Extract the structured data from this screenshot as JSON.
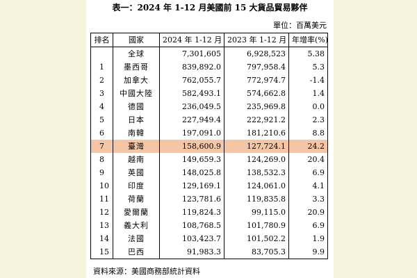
{
  "title": "表一：2024 年 1-12 月美國前 15 大貨品貿易夥伴",
  "unit": "單位：百萬美元",
  "headers": {
    "rank": "排名",
    "country": "國家",
    "y2024": "2024 年 1-12 月",
    "y2023": "2023 年 1-12 月",
    "growth": "年增率(%)"
  },
  "rows": [
    {
      "rank": "",
      "country": "全球",
      "y2024": "7,301,605",
      "y2023": "6,928,523",
      "growth": "5.38"
    },
    {
      "rank": "1",
      "country": "墨西哥",
      "y2024": "839,892.0",
      "y2023": "797,958.4",
      "growth": "5.3"
    },
    {
      "rank": "2",
      "country": "加拿大",
      "y2024": "762,055.7",
      "y2023": "772,974.7",
      "growth": "-1.4"
    },
    {
      "rank": "3",
      "country": "中國大陸",
      "y2024": "582,493.1",
      "y2023": "574,662.8",
      "growth": "1.4"
    },
    {
      "rank": "4",
      "country": "德國",
      "y2024": "236,049.5",
      "y2023": "235,969.8",
      "growth": "0.0"
    },
    {
      "rank": "5",
      "country": "日本",
      "y2024": "227,949.4",
      "y2023": "222,921.2",
      "growth": "2.3"
    },
    {
      "rank": "6",
      "country": "南韓",
      "y2024": "197,091.0",
      "y2023": "181,210.6",
      "growth": "8.8"
    },
    {
      "rank": "7",
      "country": "臺灣",
      "y2024": "158,600.9",
      "y2023": "127,724.1",
      "growth": "24.2"
    },
    {
      "rank": "8",
      "country": "越南",
      "y2024": "149,659.3",
      "y2023": "124,269.0",
      "growth": "20.4"
    },
    {
      "rank": "9",
      "country": "英國",
      "y2024": "148,025.8",
      "y2023": "138,532.3",
      "growth": "6.9"
    },
    {
      "rank": "10",
      "country": "印度",
      "y2024": "129,169.1",
      "y2023": "124,061.0",
      "growth": "4.1"
    },
    {
      "rank": "11",
      "country": "荷蘭",
      "y2024": "123,781.6",
      "y2023": "119,835.8",
      "growth": "3.3"
    },
    {
      "rank": "12",
      "country": "愛爾蘭",
      "y2024": "119,824.3",
      "y2023": "99,115.0",
      "growth": "20.9"
    },
    {
      "rank": "13",
      "country": "義大利",
      "y2024": "108,768.5",
      "y2023": "101,780.9",
      "growth": "6.9"
    },
    {
      "rank": "14",
      "country": "法國",
      "y2024": "103,423.7",
      "y2023": "101,502.2",
      "growth": "1.9"
    },
    {
      "rank": "15",
      "country": "巴西",
      "y2024": "91,983.3",
      "y2023": "83,705.3",
      "growth": "9.9"
    }
  ],
  "highlight_color": "#f5c6a5",
  "source": "資料來源：美國商務部統計資料"
}
